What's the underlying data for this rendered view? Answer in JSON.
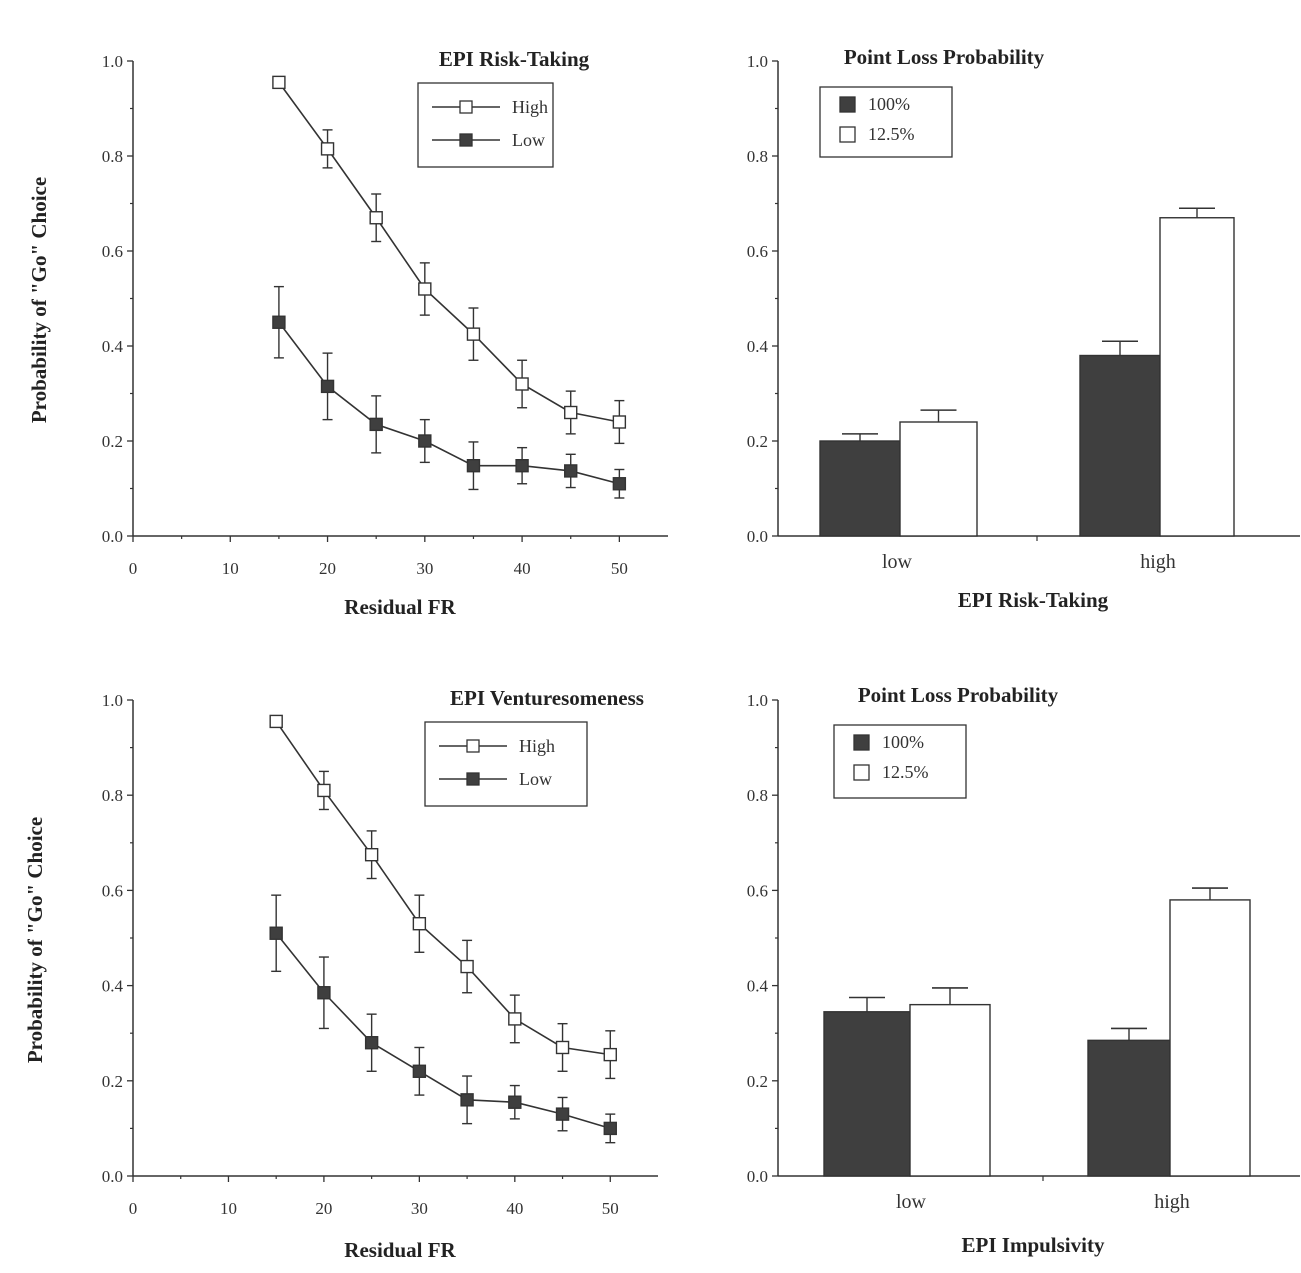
{
  "chart_data": [
    {
      "type": "line",
      "title": "EPI Risk-Taking",
      "xlabel": "Residual FR",
      "ylabel": "Probability of \"Go\" Choice",
      "xlim": [
        0,
        55
      ],
      "ylim": [
        0,
        1.0
      ],
      "xticks": [
        "0",
        "10",
        "20",
        "30",
        "40",
        "50"
      ],
      "yticks": [
        "0.0",
        "0.2",
        "0.4",
        "0.6",
        "0.8",
        "1.0"
      ],
      "legend_placement": "top-right",
      "x": [
        15,
        20,
        25,
        30,
        35,
        40,
        45,
        50
      ],
      "series": [
        {
          "name": "High",
          "marker": "open-square",
          "values": [
            0.955,
            0.815,
            0.67,
            0.52,
            0.425,
            0.32,
            0.26,
            0.24
          ],
          "error": [
            0.01,
            0.04,
            0.05,
            0.055,
            0.055,
            0.05,
            0.045,
            0.045
          ]
        },
        {
          "name": "Low",
          "marker": "filled-square",
          "values": [
            0.45,
            0.315,
            0.235,
            0.2,
            0.148,
            0.148,
            0.137,
            0.11
          ],
          "error": [
            0.075,
            0.07,
            0.06,
            0.045,
            0.05,
            0.038,
            0.035,
            0.03
          ]
        }
      ]
    },
    {
      "type": "bar",
      "title": "Point Loss Probability",
      "xlabel": "EPI Risk-Taking",
      "ylabel": "",
      "ylim": [
        0,
        1.0
      ],
      "yticks": [
        "0.0",
        "0.2",
        "0.4",
        "0.6",
        "0.8",
        "1.0"
      ],
      "categories": [
        "low",
        "high"
      ],
      "legend_placement": "top-left",
      "series": [
        {
          "name": "100%",
          "color": "#3f3f3f",
          "values": [
            0.2,
            0.38
          ],
          "error": [
            0.015,
            0.03
          ]
        },
        {
          "name": "12.5%",
          "color": "#ffffff",
          "values": [
            0.24,
            0.67
          ],
          "error": [
            0.025,
            0.02
          ]
        }
      ]
    },
    {
      "type": "line",
      "title": "EPI Venturesomeness",
      "xlabel": "Residual FR",
      "ylabel": "Probability of \"Go\" Choice",
      "xlim": [
        0,
        55
      ],
      "ylim": [
        0,
        1.0
      ],
      "xticks": [
        "0",
        "10",
        "20",
        "30",
        "40",
        "50"
      ],
      "yticks": [
        "0.0",
        "0.2",
        "0.4",
        "0.6",
        "0.8",
        "1.0"
      ],
      "legend_placement": "top-right",
      "x": [
        15,
        20,
        25,
        30,
        35,
        40,
        45,
        50
      ],
      "series": [
        {
          "name": "High",
          "marker": "open-square",
          "values": [
            0.955,
            0.81,
            0.675,
            0.53,
            0.44,
            0.33,
            0.27,
            0.255
          ],
          "error": [
            0.01,
            0.04,
            0.05,
            0.06,
            0.055,
            0.05,
            0.05,
            0.05
          ]
        },
        {
          "name": "Low",
          "marker": "filled-square",
          "values": [
            0.51,
            0.385,
            0.28,
            0.22,
            0.16,
            0.155,
            0.13,
            0.1
          ],
          "error": [
            0.08,
            0.075,
            0.06,
            0.05,
            0.05,
            0.035,
            0.035,
            0.03
          ]
        }
      ]
    },
    {
      "type": "bar",
      "title": "Point Loss Probability",
      "xlabel": "EPI Impulsivity",
      "ylabel": "",
      "ylim": [
        0,
        1.0
      ],
      "yticks": [
        "0.0",
        "0.2",
        "0.4",
        "0.6",
        "0.8",
        "1.0"
      ],
      "categories": [
        "low",
        "high"
      ],
      "legend_placement": "top-left",
      "series": [
        {
          "name": "100%",
          "color": "#3f3f3f",
          "values": [
            0.345,
            0.285
          ],
          "error": [
            0.03,
            0.025
          ]
        },
        {
          "name": "12.5%",
          "color": "#ffffff",
          "values": [
            0.36,
            0.58
          ],
          "error": [
            0.035,
            0.025
          ]
        }
      ]
    }
  ]
}
